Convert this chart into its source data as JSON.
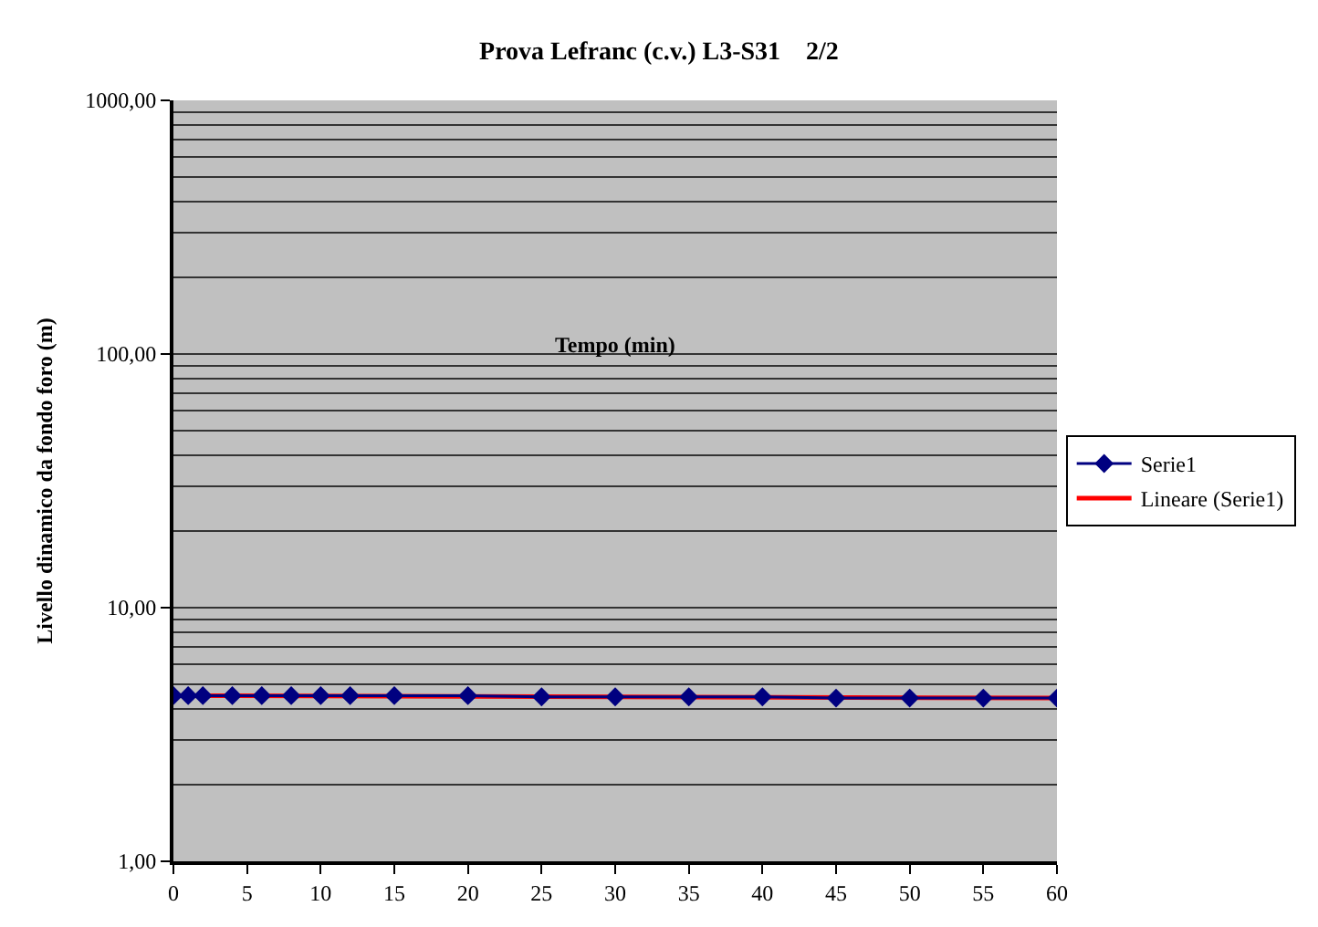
{
  "chart_data": {
    "type": "line",
    "title": "Prova Lefranc (c.v.) L3-S31    2/2",
    "xlabel": "Tempo (min)",
    "ylabel": "Livello dinamico da fondo foro (m)",
    "x": [
      0,
      1,
      2,
      4,
      6,
      8,
      10,
      12,
      15,
      20,
      25,
      30,
      35,
      40,
      45,
      50,
      55,
      60
    ],
    "series": [
      {
        "name": "Serie1",
        "color": "#000080",
        "values": [
          4.5,
          4.5,
          4.5,
          4.5,
          4.5,
          4.5,
          4.5,
          4.5,
          4.5,
          4.5,
          4.45,
          4.45,
          4.45,
          4.45,
          4.4,
          4.4,
          4.4,
          4.4
        ]
      },
      {
        "name": "Lineare (Serie1)",
        "color": "#ff0000",
        "marker": "none",
        "x": [
          0,
          60
        ],
        "values": [
          4.5,
          4.4
        ]
      }
    ],
    "log": "y",
    "xlim": [
      0,
      60
    ],
    "xticks": [
      0,
      5,
      10,
      15,
      20,
      25,
      30,
      35,
      40,
      45,
      50,
      55,
      60
    ],
    "ylim": [
      1,
      1000
    ],
    "yticks": [
      {
        "value": 1,
        "label": "1,00"
      },
      {
        "value": 10,
        "label": "10,00"
      },
      {
        "value": 100,
        "label": "100,00"
      },
      {
        "value": 1000,
        "label": "1000,00"
      }
    ],
    "grid": "y",
    "legend": "right",
    "marker": "diamond"
  }
}
